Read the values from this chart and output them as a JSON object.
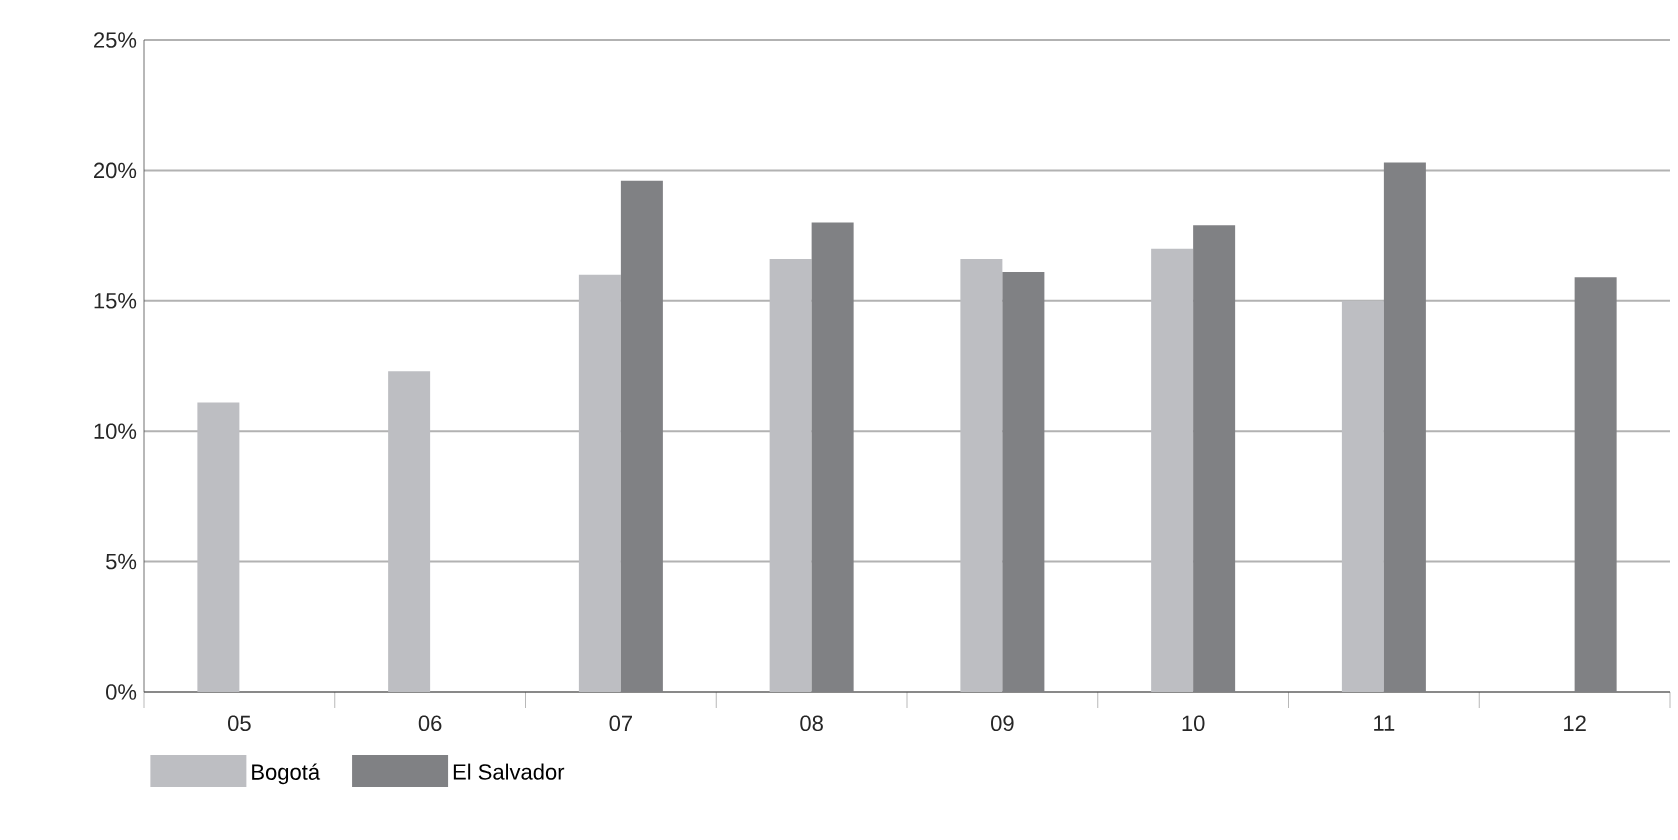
{
  "chart_data": {
    "type": "bar",
    "categories": [
      "05",
      "06",
      "07",
      "08",
      "09",
      "10",
      "11",
      "12"
    ],
    "series": [
      {
        "name": "Bogotá",
        "color": "#bdbec2",
        "values": [
          11.1,
          12.3,
          16.0,
          16.6,
          16.6,
          17.0,
          15.0,
          null
        ]
      },
      {
        "name": "El Salvador",
        "color": "#808184",
        "values": [
          null,
          null,
          19.6,
          18.0,
          16.1,
          17.9,
          20.3,
          15.9
        ]
      }
    ],
    "ylim": [
      0,
      25
    ],
    "yticks": [
      {
        "value": 0,
        "label": "0%"
      },
      {
        "value": 5,
        "label": "5%"
      },
      {
        "value": 10,
        "label": "10%"
      },
      {
        "value": 15,
        "label": "15%"
      },
      {
        "value": 20,
        "label": "20%"
      },
      {
        "value": 25,
        "label": "25%"
      }
    ],
    "grid": "y",
    "legend": "bottom left"
  }
}
